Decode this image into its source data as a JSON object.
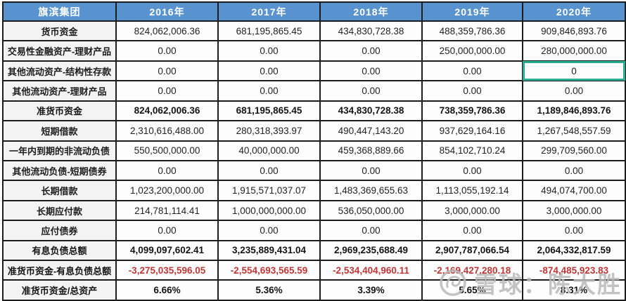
{
  "table": {
    "corner_header": "旗滨集团",
    "year_headers": [
      "2016年",
      "2017年",
      "2018年",
      "2019年",
      "2020年"
    ],
    "rows": [
      {
        "label": "货币资金",
        "emphasis": "normal",
        "values": [
          "824,062,006.36",
          "681,195,865.45",
          "434,830,728.38",
          "488,359,786.36",
          "909,846,893.76"
        ]
      },
      {
        "label": "交易性金融资产-理财产品",
        "emphasis": "normal",
        "values": [
          "0.00",
          "0.00",
          "0.00",
          "250,000,000.00",
          "280,000,000.00"
        ]
      },
      {
        "label": "其他流动资产-结构性存款",
        "emphasis": "normal",
        "values": [
          "0.00",
          "0.00",
          "0.00",
          "0.00",
          "0"
        ]
      },
      {
        "label": "其他流动资产-理财产品",
        "emphasis": "normal",
        "values": [
          "0.00",
          "0.00",
          "0.00",
          "0.00",
          "0.00"
        ]
      },
      {
        "label": "准货币资金",
        "emphasis": "bold",
        "values": [
          "824,062,006.36",
          "681,195,865.45",
          "434,830,728.38",
          "738,359,786.36",
          "1,189,846,893.76"
        ]
      },
      {
        "label": "短期借款",
        "emphasis": "normal",
        "values": [
          "2,310,616,488.00",
          "280,318,393.97",
          "490,447,143.20",
          "937,629,164.16",
          "1,267,548,557.59"
        ]
      },
      {
        "label": "一年内到期的非流动负债",
        "emphasis": "normal",
        "values": [
          "550,500,000.00",
          "40,000,000.00",
          "459,368,889.66",
          "854,102,710.24",
          "299,709,560.00"
        ]
      },
      {
        "label": "其他流动负债-短期债券",
        "emphasis": "normal",
        "values": [
          "0.00",
          "0.00",
          "0.00",
          "0.00",
          "0.00"
        ]
      },
      {
        "label": "长期借款",
        "emphasis": "normal",
        "values": [
          "1,023,200,000.00",
          "1,915,571,037.07",
          "1,483,369,655.63",
          "1,113,055,192.14",
          "494,074,700.00"
        ]
      },
      {
        "label": "长期应付款",
        "emphasis": "normal",
        "values": [
          "214,781,114.41",
          "1,000,000,000.00",
          "536,050,000.00",
          "3,000,000.00",
          "3,000,000.00"
        ]
      },
      {
        "label": "应付债券",
        "emphasis": "normal",
        "values": [
          "0.00",
          "0.00",
          "0.00",
          "0.00",
          "0.00"
        ]
      },
      {
        "label": "有息负债总额",
        "emphasis": "bold",
        "values": [
          "4,099,097,602.41",
          "3,235,889,431.04",
          "2,969,235,688.49",
          "2,907,787,066.54",
          "2,064,332,817.59"
        ]
      },
      {
        "label": "准货币资金-有息负债总额",
        "emphasis": "bold-red",
        "values": [
          "-3,275,035,596.05",
          "-2,554,693,565.59",
          "-2,534,404,960.11",
          "-2,169,427,280.18",
          "-874,485,923.83"
        ]
      },
      {
        "label": "准货币资金/总资产",
        "emphasis": "bold",
        "values": [
          "6.66%",
          "5.36%",
          "3.39%",
          "5.65%",
          "8.31%"
        ]
      }
    ],
    "selected_cell": {
      "row_index": 2,
      "col_index": 4
    }
  },
  "watermark": {
    "logo": "xueqiu-snowball-icon",
    "text": "雪球：陈大胜"
  },
  "colors": {
    "header_bg": "#5893d0",
    "header_text": "#ffffff",
    "grid_border": "#1c1c1c",
    "negative_value": "#c03636",
    "selected_cell_border": "#2bae92",
    "label_cell_bg": "#f3f3f3",
    "watermark_gray": "#b9b9b9"
  }
}
